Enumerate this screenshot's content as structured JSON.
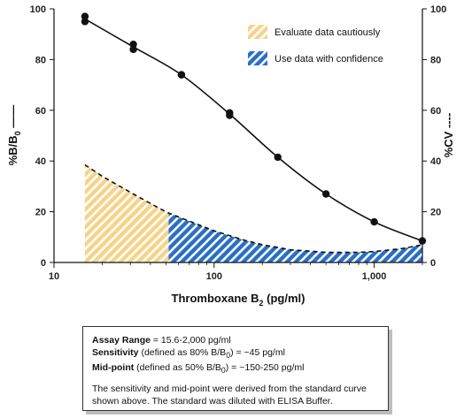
{
  "colors": {
    "curve": "#111111",
    "cautious_fill": "#f5d48a",
    "confidence_fill": "#2a6fc4",
    "stripe": "#ffffff"
  },
  "chart_data": {
    "type": "line",
    "x_scale": "log",
    "xlim": [
      10,
      2000
    ],
    "ylim": [
      0,
      100
    ],
    "y2lim": [
      0,
      100
    ],
    "grid": false,
    "legend_placement": "top-right",
    "xlabel": {
      "pre": "Thromboxane B",
      "sub": "2",
      "post": " (pg/ml)"
    },
    "ylabel": {
      "pre": "%B/B",
      "sub": "0",
      "post": " ——"
    },
    "y2label": "%CV ----",
    "x_ticks": [
      {
        "value": 10,
        "label": "10"
      },
      {
        "value": 100,
        "label": "100"
      },
      {
        "value": 1000,
        "label": "1,000"
      }
    ],
    "y_ticks": [
      0,
      20,
      40,
      60,
      80,
      100
    ],
    "y_tick_labels": [
      "0",
      "20",
      "40",
      "60",
      "80",
      "100"
    ],
    "series": [
      {
        "style": "solid-with-markers",
        "points": [
          [
            15.6,
            97
          ],
          [
            15.6,
            95
          ],
          [
            31.3,
            86
          ],
          [
            31.3,
            84
          ],
          [
            62.5,
            74
          ],
          [
            62.5,
            74
          ],
          [
            125,
            59
          ],
          [
            125,
            58
          ],
          [
            250,
            41.5
          ],
          [
            500,
            27
          ],
          [
            1000,
            16
          ],
          [
            2000,
            8.5
          ]
        ]
      },
      {
        "style": "dashed",
        "points": [
          [
            15.6,
            38.5
          ],
          [
            20,
            34
          ],
          [
            31.3,
            27
          ],
          [
            45,
            21.5
          ],
          [
            52,
            19.5
          ],
          [
            62.5,
            17.5
          ],
          [
            100,
            12.5
          ],
          [
            150,
            9
          ],
          [
            200,
            7
          ],
          [
            300,
            5
          ],
          [
            500,
            4
          ],
          [
            800,
            4
          ],
          [
            1000,
            4.3
          ],
          [
            1500,
            5.5
          ],
          [
            2000,
            7
          ]
        ]
      }
    ],
    "regions": [
      {
        "x_from": 15.6,
        "x_to": 52,
        "legend_key": "cautious"
      },
      {
        "x_from": 52,
        "x_to": 2000,
        "legend_key": "confidence"
      }
    ],
    "legend": [
      {
        "key": "cautious",
        "label": "Evaluate data cautiously"
      },
      {
        "key": "confidence",
        "label": "Use data with confidence"
      }
    ]
  },
  "infobox": {
    "assay_range_label": "Assay Range",
    "assay_range_value": " = 15.6-2,000 pg/ml",
    "sensitivity_label": "Sensitivity",
    "sensitivity_pre": " (defined as 80% B/B",
    "sensitivity_sub": "0",
    "sensitivity_post": ") =  ~45 pg/ml",
    "midpoint_label": "Mid-point",
    "midpoint_pre": " (defined as 50% B/B",
    "midpoint_sub": "0",
    "midpoint_post": ") =  ~150-250 pg/ml",
    "note": "The sensitivity and mid-point were derived from the standard curve shown above. The standard was diluted with ELISA Buffer."
  }
}
